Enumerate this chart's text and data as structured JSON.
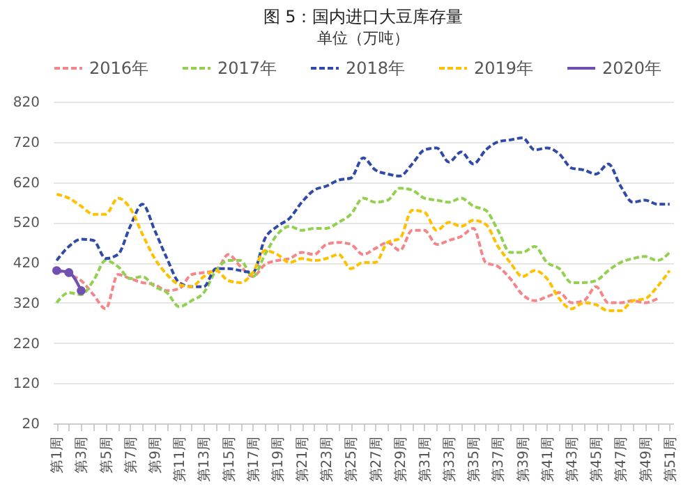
{
  "chart_data": {
    "type": "line",
    "title": "图 5：国内进口大豆库存量",
    "subtitle": "单位（万吨）",
    "categories": [
      "第1周",
      null,
      "第3周",
      null,
      "第5周",
      null,
      "第7周",
      null,
      "第9周",
      null,
      "第11周",
      null,
      "第13周",
      null,
      "第15周",
      null,
      "第17周",
      null,
      "第19周",
      null,
      "第21周",
      null,
      "第23周",
      null,
      "第25周",
      null,
      "第27周",
      null,
      "第29周",
      null,
      "第31周",
      null,
      "第33周",
      null,
      "第35周",
      null,
      "第37周",
      null,
      "第39周",
      null,
      "第41周",
      null,
      "第43周",
      null,
      "第45周",
      null,
      "第47周",
      null,
      "第49周",
      null,
      "第51周"
    ],
    "series": [
      {
        "name": "2016年",
        "color": "#f4868a",
        "line_style": "dashed",
        "values": [
          400,
          390,
          375,
          340,
          305,
          390,
          380,
          370,
          365,
          350,
          355,
          390,
          395,
          400,
          440,
          410,
          385,
          415,
          425,
          430,
          445,
          440,
          465,
          470,
          465,
          440,
          455,
          470,
          450,
          500,
          500,
          465,
          475,
          485,
          505,
          420,
          410,
          380,
          340,
          325,
          335,
          345,
          320,
          325,
          360,
          320,
          320,
          325,
          320,
          330,
          null
        ]
      },
      {
        "name": "2017年",
        "color": "#92d050",
        "line_style": "dashed",
        "values": [
          320,
          345,
          340,
          375,
          425,
          410,
          380,
          385,
          360,
          345,
          310,
          325,
          345,
          400,
          425,
          425,
          385,
          440,
          490,
          510,
          500,
          505,
          505,
          520,
          540,
          580,
          570,
          575,
          605,
          600,
          580,
          575,
          570,
          580,
          560,
          550,
          500,
          445,
          445,
          460,
          420,
          405,
          370,
          370,
          375,
          400,
          420,
          430,
          435,
          425,
          445
        ]
      },
      {
        "name": "2018年",
        "color": "#2f4aa8",
        "line_style": "dashed",
        "values": [
          425,
          460,
          478,
          475,
          430,
          440,
          510,
          565,
          500,
          430,
          370,
          360,
          360,
          405,
          405,
          400,
          395,
          480,
          510,
          530,
          570,
          600,
          610,
          625,
          630,
          680,
          650,
          640,
          635,
          665,
          700,
          705,
          670,
          695,
          665,
          700,
          720,
          725,
          730,
          700,
          705,
          690,
          655,
          650,
          640,
          665,
          610,
          570,
          575,
          565,
          565
        ]
      },
      {
        "name": "2019年",
        "color": "#ffc000",
        "line_style": "dashed",
        "values": [
          590,
          580,
          560,
          540,
          540,
          580,
          555,
          490,
          430,
          390,
          365,
          360,
          385,
          400,
          375,
          370,
          395,
          450,
          440,
          420,
          430,
          425,
          430,
          440,
          405,
          420,
          420,
          470,
          480,
          550,
          545,
          500,
          520,
          510,
          525,
          515,
          460,
          420,
          385,
          400,
          380,
          330,
          305,
          320,
          315,
          300,
          300,
          325,
          330,
          360,
          400
        ]
      },
      {
        "name": "2020年",
        "color": "#7050b0",
        "line_style": "solid",
        "marker": "circle",
        "values": [
          400,
          395,
          350,
          null,
          null,
          null,
          null,
          null,
          null,
          null,
          null,
          null,
          null,
          null,
          null,
          null,
          null,
          null,
          null,
          null,
          null,
          null,
          null,
          null,
          null,
          null,
          null,
          null,
          null,
          null,
          null,
          null,
          null,
          null,
          null,
          null,
          null,
          null,
          null,
          null,
          null,
          null,
          null,
          null,
          null,
          null,
          null,
          null,
          null,
          null,
          null
        ]
      }
    ],
    "ylim": [
      20,
      820
    ],
    "yticks": [
      20,
      120,
      220,
      320,
      420,
      520,
      620,
      720,
      820
    ],
    "grid": "y",
    "legend": "top"
  }
}
